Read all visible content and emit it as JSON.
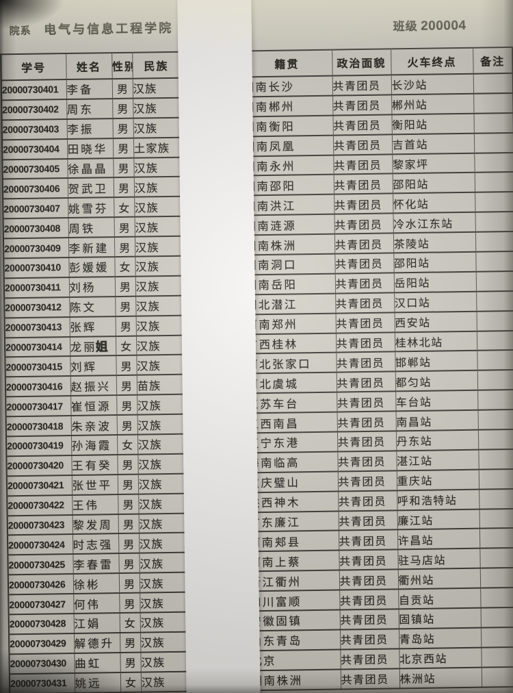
{
  "page_header": {
    "department_label": "院系",
    "department": "电气与信息工程学院",
    "class_label": "班级",
    "class_number": "200004"
  },
  "table": {
    "column_labels": [
      "学号",
      "姓名",
      "性别",
      "民族",
      "籍贯",
      "政治面貌",
      "火车终点",
      "备注"
    ],
    "rows": [
      {
        "id": "20000730401",
        "name": "李备",
        "gender": "男",
        "ethnicity": "汉族",
        "native_place": "湖南长沙",
        "political_status": "共青团员",
        "train_terminal": "长沙站",
        "remark": ""
      },
      {
        "id": "20000730402",
        "name": "周东",
        "gender": "男",
        "ethnicity": "汉族",
        "native_place": "湖南郴州",
        "political_status": "共青团员",
        "train_terminal": "郴州站",
        "remark": ""
      },
      {
        "id": "20000730403",
        "name": "李振",
        "gender": "男",
        "ethnicity": "汉族",
        "native_place": "湖南衡阳",
        "political_status": "共青团员",
        "train_terminal": "衡阳站",
        "remark": ""
      },
      {
        "id": "20000730404",
        "name": "田晓华",
        "gender": "男",
        "ethnicity": "土家族",
        "native_place": "湖南凤凰",
        "political_status": "共青团员",
        "train_terminal": "吉首站",
        "remark": ""
      },
      {
        "id": "20000730405",
        "name": "徐晶晶",
        "gender": "男",
        "ethnicity": "汉族",
        "native_place": "湖南永州",
        "political_status": "共青团员",
        "train_terminal": "黎家坪",
        "remark": ""
      },
      {
        "id": "20000730406",
        "name": "贺武卫",
        "gender": "男",
        "ethnicity": "汉族",
        "native_place": "湖南邵阳",
        "political_status": "共青团员",
        "train_terminal": "邵阳站",
        "remark": ""
      },
      {
        "id": "20000730407",
        "name": "姚雪芬",
        "gender": "女",
        "ethnicity": "汉族",
        "native_place": "湖南洪江",
        "political_status": "共青团员",
        "train_terminal": "怀化站",
        "remark": ""
      },
      {
        "id": "20000730408",
        "name": "周铁",
        "gender": "男",
        "ethnicity": "汉族",
        "native_place": "湖南涟源",
        "political_status": "共青团员",
        "train_terminal": "冷水江东站",
        "remark": ""
      },
      {
        "id": "20000730409",
        "name": "李新建",
        "gender": "男",
        "ethnicity": "汉族",
        "native_place": "湖南株洲",
        "political_status": "共青团员",
        "train_terminal": "茶陵站",
        "remark": ""
      },
      {
        "id": "20000730410",
        "name": "彭媛媛",
        "gender": "女",
        "ethnicity": "汉族",
        "native_place": "湖南洞口",
        "political_status": "共青团员",
        "train_terminal": "邵阳站",
        "remark": ""
      },
      {
        "id": "20000730411",
        "name": "刘杨",
        "gender": "男",
        "ethnicity": "汉族",
        "native_place": "湖南岳阳",
        "political_status": "共青团员",
        "train_terminal": "岳阳站",
        "remark": ""
      },
      {
        "id": "20000730412",
        "name": "陈文",
        "gender": "男",
        "ethnicity": "汉族",
        "native_place": "湖北潜江",
        "political_status": "共青团员",
        "train_terminal": "汉口站",
        "remark": ""
      },
      {
        "id": "20000730413",
        "name": "张辉",
        "gender": "男",
        "ethnicity": "汉族",
        "native_place": "河南郑州",
        "political_status": "共青团员",
        "train_terminal": "西安站",
        "remark": ""
      },
      {
        "id": "20000730414",
        "name": "龙丽",
        "name_annotation": "姐",
        "gender": "女",
        "ethnicity": "汉族",
        "native_place": "广西桂林",
        "political_status": "共青团员",
        "train_terminal": "桂林北站",
        "remark": ""
      },
      {
        "id": "20000730415",
        "name": "刘辉",
        "gender": "男",
        "ethnicity": "汉族",
        "native_place": "河北张家口",
        "political_status": "共青团员",
        "train_terminal": "邯郸站",
        "remark": ""
      },
      {
        "id": "20000730416",
        "name": "赵振兴",
        "gender": "男",
        "ethnicity": "苗族",
        "native_place": "河北虞城",
        "political_status": "共青团员",
        "train_terminal": "都匀站",
        "remark": ""
      },
      {
        "id": "20000730417",
        "name": "崔恒源",
        "gender": "男",
        "ethnicity": "汉族",
        "native_place": "江苏车台",
        "political_status": "共青团员",
        "train_terminal": "车台站",
        "remark": ""
      },
      {
        "id": "20000730418",
        "name": "朱亲波",
        "gender": "男",
        "ethnicity": "汉族",
        "native_place": "江西南昌",
        "political_status": "共青团员",
        "train_terminal": "南昌站",
        "remark": ""
      },
      {
        "id": "20000730419",
        "name": "孙海霞",
        "gender": "女",
        "ethnicity": "汉族",
        "native_place": "辽宁东港",
        "political_status": "共青团员",
        "train_terminal": "丹东站",
        "remark": ""
      },
      {
        "id": "20000730420",
        "name": "王有癸",
        "gender": "男",
        "ethnicity": "汉族",
        "native_place": "海南临高",
        "political_status": "共青团员",
        "train_terminal": "湛江站",
        "remark": ""
      },
      {
        "id": "20000730421",
        "name": "张世平",
        "gender": "男",
        "ethnicity": "汉族",
        "native_place": "重庆璧山",
        "political_status": "共青团员",
        "train_terminal": "重庆站",
        "remark": ""
      },
      {
        "id": "20000730422",
        "name": "王伟",
        "gender": "男",
        "ethnicity": "汉族",
        "native_place": "陕西神木",
        "political_status": "共青团员",
        "train_terminal": "呼和浩特站",
        "remark": ""
      },
      {
        "id": "20000730423",
        "name": "黎发周",
        "gender": "男",
        "ethnicity": "汉族",
        "native_place": "广东廉江",
        "political_status": "共青团员",
        "train_terminal": "廉江站",
        "remark": ""
      },
      {
        "id": "20000730424",
        "name": "时志强",
        "gender": "男",
        "ethnicity": "汉族",
        "native_place": "河南郏县",
        "political_status": "共青团员",
        "train_terminal": "许昌站",
        "remark": ""
      },
      {
        "id": "20000730425",
        "name": "李春雷",
        "gender": "男",
        "ethnicity": "汉族",
        "native_place": "河南上蔡",
        "political_status": "共青团员",
        "train_terminal": "驻马店站",
        "remark": ""
      },
      {
        "id": "20000730426",
        "name": "徐彬",
        "gender": "男",
        "ethnicity": "汉族",
        "native_place": "浙江衢州",
        "political_status": "共青团员",
        "train_terminal": "衢州站",
        "remark": ""
      },
      {
        "id": "20000730427",
        "name": "何伟",
        "gender": "男",
        "ethnicity": "汉族",
        "native_place": "四川富顺",
        "political_status": "共青团员",
        "train_terminal": "自贡站",
        "remark": ""
      },
      {
        "id": "20000730428",
        "name": "江娟",
        "gender": "女",
        "ethnicity": "汉族",
        "native_place": "安徽固镇",
        "political_status": "共青团员",
        "train_terminal": "固镇站",
        "remark": ""
      },
      {
        "id": "20000730429",
        "name": "解德升",
        "gender": "男",
        "ethnicity": "汉族",
        "native_place": "山东青岛",
        "political_status": "共青团员",
        "train_terminal": "青岛站",
        "remark": ""
      },
      {
        "id": "20000730430",
        "name": "曲虹",
        "gender": "男",
        "ethnicity": "汉族",
        "native_place": "北京",
        "political_status": "共青团员",
        "train_terminal": "北京西站",
        "remark": ""
      },
      {
        "id": "20000730431",
        "name": "姚远",
        "gender": "女",
        "ethnicity": "汉族",
        "native_place": "湖南株洲",
        "political_status": "共青团员",
        "train_terminal": "株洲站",
        "remark": ""
      }
    ]
  },
  "colors": {
    "page_background": "#d3d0c7",
    "paper_strip": "#f7f5f3",
    "table_line": "#3b3933",
    "text": "#24231e"
  }
}
